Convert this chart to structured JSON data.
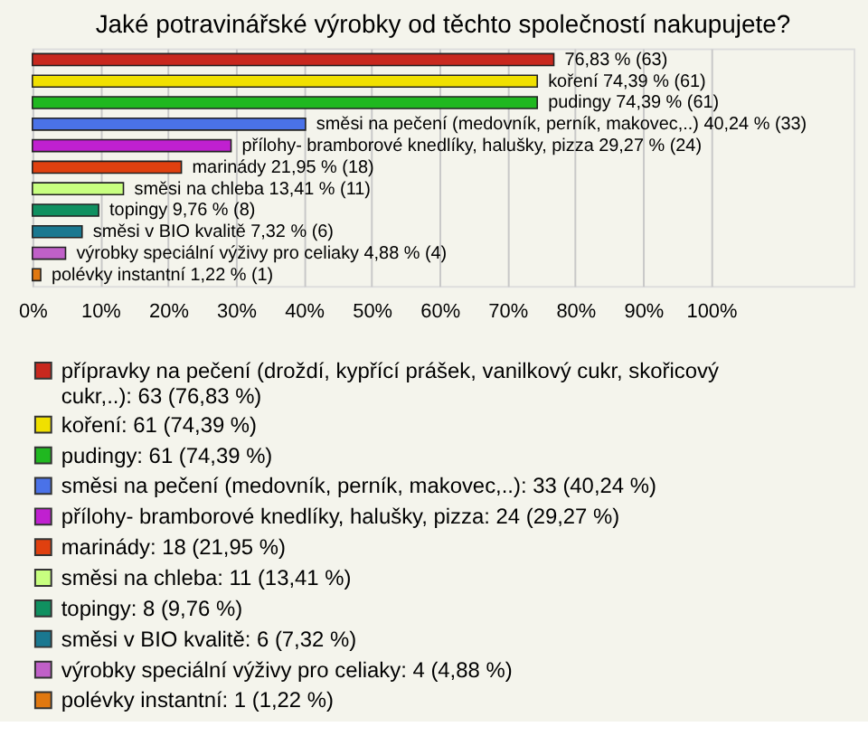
{
  "chart_data": {
    "type": "bar",
    "orientation": "horizontal",
    "title": "Jaké potravinářské výrobky od těchto společností nakupujete?",
    "categories": [
      null,
      null,
      null,
      null,
      null,
      null,
      null,
      null,
      null,
      null,
      null
    ],
    "series": [
      {
        "name": "přípravky na pečení (droždí, kypřící prášek, vanilkový cukr, skořicový cukr,..): 63 (76,83 %)",
        "color": "#c8281e",
        "values": [
          76.83,
          null,
          null,
          null,
          null,
          null,
          null,
          null,
          null,
          null,
          null
        ],
        "value_labels": [
          "76,83 % (63)",
          null,
          null,
          null,
          null,
          null,
          null,
          null,
          null,
          null,
          null
        ]
      },
      {
        "name": "koření: 61 (74,39 %)",
        "color": "#f0e000",
        "values": [
          null,
          74.39,
          null,
          null,
          null,
          null,
          null,
          null,
          null,
          null,
          null
        ],
        "value_labels": [
          null,
          "koření 74,39 % (61)",
          null,
          null,
          null,
          null,
          null,
          null,
          null,
          null,
          null
        ]
      },
      {
        "name": "pudingy: 61 (74,39 %)",
        "color": "#20b820",
        "values": [
          null,
          null,
          74.39,
          null,
          null,
          null,
          null,
          null,
          null,
          null,
          null
        ],
        "value_labels": [
          null,
          null,
          "pudingy 74,39 % (61)",
          null,
          null,
          null,
          null,
          null,
          null,
          null,
          null
        ]
      },
      {
        "name": "směsi na pečení (medovník, perník, makovec,..): 33 (40,24 %)",
        "color": "#4a72e8",
        "values": [
          null,
          null,
          null,
          40.24,
          null,
          null,
          null,
          null,
          null,
          null,
          null
        ],
        "value_labels": [
          null,
          null,
          null,
          "směsi na pečení (medovník, perník, makovec,..) 40,24 % (33)",
          null,
          null,
          null,
          null,
          null,
          null,
          null
        ]
      },
      {
        "name": "přílohy- bramborové knedlíky, halušky, pizza: 24 (29,27 %)",
        "color": "#c020d0",
        "values": [
          null,
          null,
          null,
          null,
          29.27,
          null,
          null,
          null,
          null,
          null,
          null
        ],
        "value_labels": [
          null,
          null,
          null,
          null,
          "přílohy- bramborové knedlíky, halušky, pizza 29,27 % (24)",
          null,
          null,
          null,
          null,
          null,
          null
        ]
      },
      {
        "name": "marinády: 18 (21,95 %)",
        "color": "#e0400f",
        "values": [
          null,
          null,
          null,
          null,
          null,
          21.95,
          null,
          null,
          null,
          null,
          null
        ],
        "value_labels": [
          null,
          null,
          null,
          null,
          null,
          "marinády 21,95 % (18)",
          null,
          null,
          null,
          null,
          null
        ]
      },
      {
        "name": "směsi na chleba: 11 (13,41 %)",
        "color": "#c8ff80",
        "values": [
          null,
          null,
          null,
          null,
          null,
          null,
          13.41,
          null,
          null,
          null,
          null
        ],
        "value_labels": [
          null,
          null,
          null,
          null,
          null,
          null,
          "směsi na chleba 13,41 % (11)",
          null,
          null,
          null,
          null
        ]
      },
      {
        "name": "topingy: 8 (9,76 %)",
        "color": "#109060",
        "values": [
          null,
          null,
          null,
          null,
          null,
          null,
          null,
          9.76,
          null,
          null,
          null
        ],
        "value_labels": [
          null,
          null,
          null,
          null,
          null,
          null,
          null,
          "topingy 9,76 % (8)",
          null,
          null,
          null
        ]
      },
      {
        "name": "směsi v BIO kvalitě: 6 (7,32 %)",
        "color": "#1a7890",
        "values": [
          null,
          null,
          null,
          null,
          null,
          null,
          null,
          null,
          7.32,
          null,
          null
        ],
        "value_labels": [
          null,
          null,
          null,
          null,
          null,
          null,
          null,
          null,
          "směsi v BIO kvalitě 7,32 % (6)",
          null,
          null
        ]
      },
      {
        "name": "výrobky speciální výživy pro celiaky: 4 (4,88 %)",
        "color": "#c060c8",
        "values": [
          null,
          null,
          null,
          null,
          null,
          null,
          null,
          null,
          null,
          4.88,
          null
        ],
        "value_labels": [
          null,
          null,
          null,
          null,
          null,
          null,
          null,
          null,
          null,
          "výrobky speciální výživy pro celiaky 4,88 % (4)",
          null
        ]
      },
      {
        "name": "polévky instantní: 1 (1,22 %)",
        "color": "#e07810",
        "values": [
          null,
          null,
          null,
          null,
          null,
          null,
          null,
          null,
          null,
          null,
          1.22
        ],
        "value_labels": [
          null,
          null,
          null,
          null,
          null,
          null,
          null,
          null,
          null,
          null,
          "polévky instantní 1,22 % (1)"
        ]
      }
    ],
    "xlim": [
      0,
      121
    ],
    "xticks": [
      {
        "value": 0,
        "label": "0%"
      },
      {
        "value": 10,
        "label": "10%"
      },
      {
        "value": 20,
        "label": "20%"
      },
      {
        "value": 30,
        "label": "30%"
      },
      {
        "value": 40,
        "label": "40%"
      },
      {
        "value": 50,
        "label": "50%"
      },
      {
        "value": 60,
        "label": "60%"
      },
      {
        "value": 70,
        "label": "70%"
      },
      {
        "value": 80,
        "label": "80%"
      },
      {
        "value": 90,
        "label": "90%"
      },
      {
        "value": 100,
        "label": "100%"
      }
    ],
    "grid": "x",
    "legend": "bottom",
    "tick_labels": "x"
  }
}
